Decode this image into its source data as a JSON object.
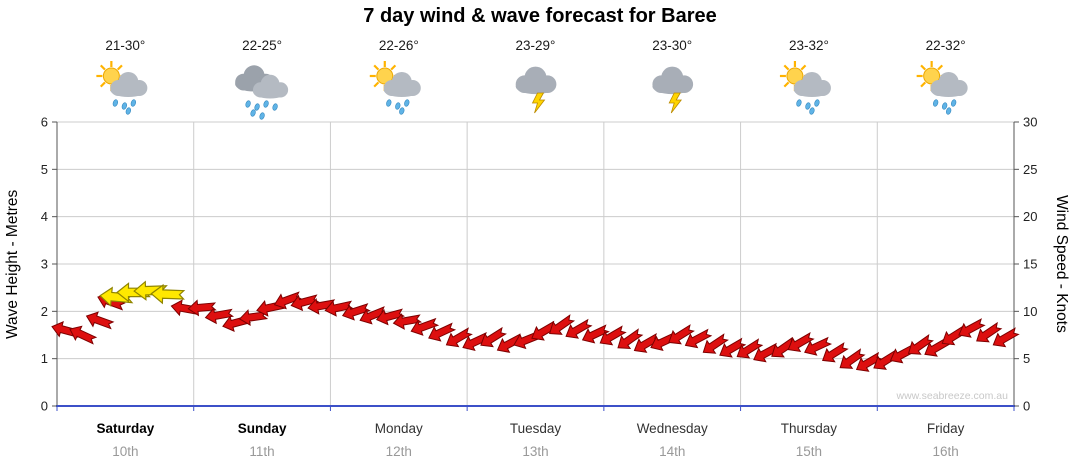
{
  "title": "7 day wind & wave forecast for Baree",
  "watermark": "www.seabreeze.com.au",
  "axes": {
    "left_label": "Wave Height - Metres",
    "right_label": "Wind Speed - Knots",
    "left_ticks": [
      0,
      1,
      2,
      3,
      4,
      5,
      6
    ],
    "right_ticks": [
      0,
      5,
      10,
      15,
      20,
      25,
      30
    ]
  },
  "days": [
    {
      "name": "Saturday",
      "date": "10th",
      "temp": "21-30°",
      "icon": "sun-shower",
      "bold": true
    },
    {
      "name": "Sunday",
      "date": "11th",
      "temp": "22-25°",
      "icon": "rain",
      "bold": true
    },
    {
      "name": "Monday",
      "date": "12th",
      "temp": "22-26°",
      "icon": "sun-shower",
      "bold": false
    },
    {
      "name": "Tuesday",
      "date": "13th",
      "temp": "23-29°",
      "icon": "storm",
      "bold": false
    },
    {
      "name": "Wednesday",
      "date": "14th",
      "temp": "23-30°",
      "icon": "storm",
      "bold": false
    },
    {
      "name": "Thursday",
      "date": "15th",
      "temp": "23-32°",
      "icon": "sun-shower",
      "bold": false
    },
    {
      "name": "Friday",
      "date": "16th",
      "temp": "22-32°",
      "icon": "sun-shower",
      "bold": false
    }
  ],
  "chart_data": {
    "type": "wind-arrow-series",
    "title": "7 day wind & wave forecast for Baree",
    "x_unit": "hours",
    "x_range": [
      0,
      168
    ],
    "wave_axis": {
      "label": "Wave Height - Metres",
      "range": [
        0,
        6
      ]
    },
    "wind_axis": {
      "label": "Wind Speed - Knots",
      "range": [
        0,
        30
      ]
    },
    "grid": true,
    "colors": {
      "arrow_red": "#dd0f0f",
      "arrow_red_stroke": "#7d0000",
      "arrow_yellow": "#ffe800",
      "arrow_yellow_stroke": "#8f8400",
      "axis_bottom": "#3c50c8",
      "grid_line": "#cccccc",
      "axis_side": "#555555"
    },
    "points_columns": [
      "hours",
      "wind_knots",
      "direction_deg",
      "color"
    ],
    "points": [
      [
        1.5,
        8,
        195,
        "red"
      ],
      [
        4.5,
        7.5,
        205,
        "red"
      ],
      [
        7.5,
        9,
        200,
        "red"
      ],
      [
        9.5,
        11,
        200,
        "red"
      ],
      [
        10.5,
        11.5,
        185,
        "yellow"
      ],
      [
        13.5,
        12,
        180,
        "yellow"
      ],
      [
        16.5,
        12.2,
        178,
        "yellow"
      ],
      [
        19.5,
        11.8,
        182,
        "yellow"
      ],
      [
        22.5,
        10.3,
        190,
        "red"
      ],
      [
        25.5,
        10.4,
        175,
        "red"
      ],
      [
        28.5,
        9.6,
        170,
        "red"
      ],
      [
        31.5,
        8.8,
        165,
        "red"
      ],
      [
        34.5,
        9.4,
        172,
        "red"
      ],
      [
        37.5,
        10.4,
        168,
        "red"
      ],
      [
        40.5,
        11.2,
        160,
        "red"
      ],
      [
        43.5,
        11,
        165,
        "red"
      ],
      [
        46.5,
        10.6,
        170,
        "red"
      ],
      [
        49.5,
        10.4,
        168,
        "red"
      ],
      [
        52.5,
        10,
        162,
        "red"
      ],
      [
        55.5,
        9.6,
        158,
        "red"
      ],
      [
        58.5,
        9.5,
        165,
        "red"
      ],
      [
        61.5,
        9,
        170,
        "red"
      ],
      [
        64.5,
        8.4,
        160,
        "red"
      ],
      [
        67.5,
        7.8,
        155,
        "red"
      ],
      [
        70.5,
        7.2,
        150,
        "red"
      ],
      [
        73.5,
        6.8,
        155,
        "red"
      ],
      [
        76.5,
        7.2,
        148,
        "red"
      ],
      [
        79.5,
        6.6,
        152,
        "red"
      ],
      [
        82.5,
        7,
        158,
        "red"
      ],
      [
        85.5,
        7.9,
        150,
        "red"
      ],
      [
        88.5,
        8.5,
        145,
        "red"
      ],
      [
        91.5,
        8.1,
        150,
        "red"
      ],
      [
        94.5,
        7.6,
        155,
        "red"
      ],
      [
        97.5,
        7.4,
        150,
        "red"
      ],
      [
        100.5,
        7,
        145,
        "red"
      ],
      [
        103.5,
        6.6,
        150,
        "red"
      ],
      [
        106.5,
        6.8,
        155,
        "red"
      ],
      [
        109.5,
        7.5,
        148,
        "red"
      ],
      [
        112.5,
        7.1,
        152,
        "red"
      ],
      [
        115.5,
        6.5,
        146,
        "red"
      ],
      [
        118.5,
        6.1,
        150,
        "red"
      ],
      [
        121.5,
        6,
        148,
        "red"
      ],
      [
        124.5,
        5.6,
        152,
        "red"
      ],
      [
        127.5,
        6.1,
        145,
        "red"
      ],
      [
        130.5,
        6.7,
        150,
        "red"
      ],
      [
        133.5,
        6.3,
        155,
        "red"
      ],
      [
        136.5,
        5.6,
        148,
        "red"
      ],
      [
        139.5,
        4.9,
        145,
        "red"
      ],
      [
        142.5,
        4.6,
        150,
        "red"
      ],
      [
        145.5,
        4.8,
        148,
        "red"
      ],
      [
        148.5,
        5.5,
        152,
        "red"
      ],
      [
        151.5,
        6.4,
        145,
        "red"
      ],
      [
        154.5,
        6.2,
        150,
        "red"
      ],
      [
        157.5,
        7.4,
        148,
        "red"
      ],
      [
        160.5,
        8.2,
        152,
        "red"
      ],
      [
        163.5,
        7.7,
        146,
        "red"
      ],
      [
        166.5,
        7.2,
        150,
        "red"
      ]
    ]
  }
}
